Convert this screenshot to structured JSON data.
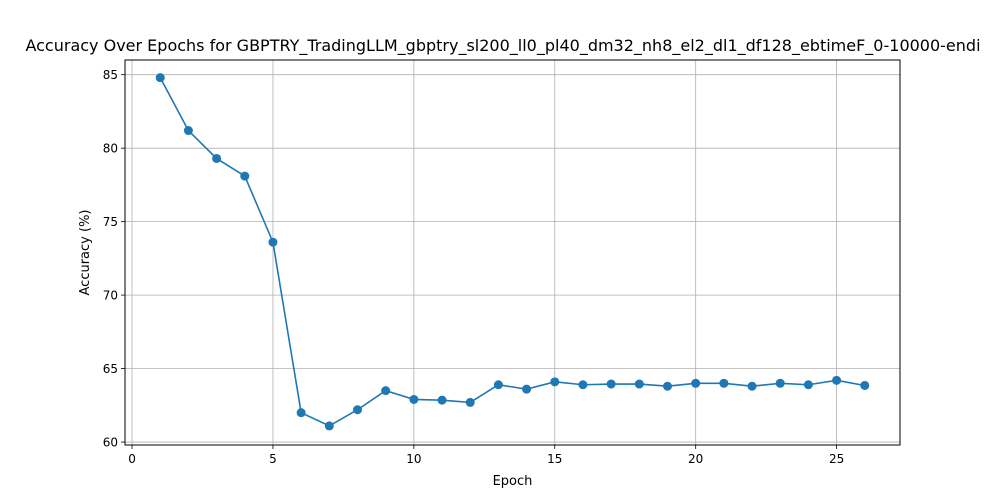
{
  "chart_data": {
    "type": "line",
    "title": "Accuracy Over Epochs for GBPTRY_TradingLLM_gbptry_sl200_ll0_pl40_dm32_nh8_el2_dl1_df128_ebtimeF_0-10000-endi",
    "xlabel": "Epoch",
    "ylabel": "Accuracy (%)",
    "xlim": [
      -0.25,
      27.25
    ],
    "ylim": [
      59.8,
      86.0
    ],
    "xticks": [
      0,
      5,
      10,
      15,
      20,
      25
    ],
    "yticks": [
      60,
      65,
      70,
      75,
      80,
      85
    ],
    "grid": true,
    "line_color": "#1f77b4",
    "marker": "circle",
    "series": [
      {
        "x": [
          1,
          2,
          3,
          4,
          5,
          6,
          7,
          8,
          9,
          10,
          11,
          12,
          13,
          14,
          15,
          16,
          17,
          18,
          19,
          20,
          21,
          22,
          23,
          24,
          25,
          26
        ],
        "values": [
          84.8,
          81.2,
          79.3,
          78.1,
          73.6,
          62.0,
          61.1,
          62.2,
          63.5,
          62.9,
          62.85,
          62.7,
          63.9,
          63.6,
          64.1,
          63.9,
          63.95,
          63.95,
          63.8,
          64.0,
          64.0,
          63.8,
          64.0,
          63.9,
          64.2,
          63.85
        ]
      }
    ]
  }
}
